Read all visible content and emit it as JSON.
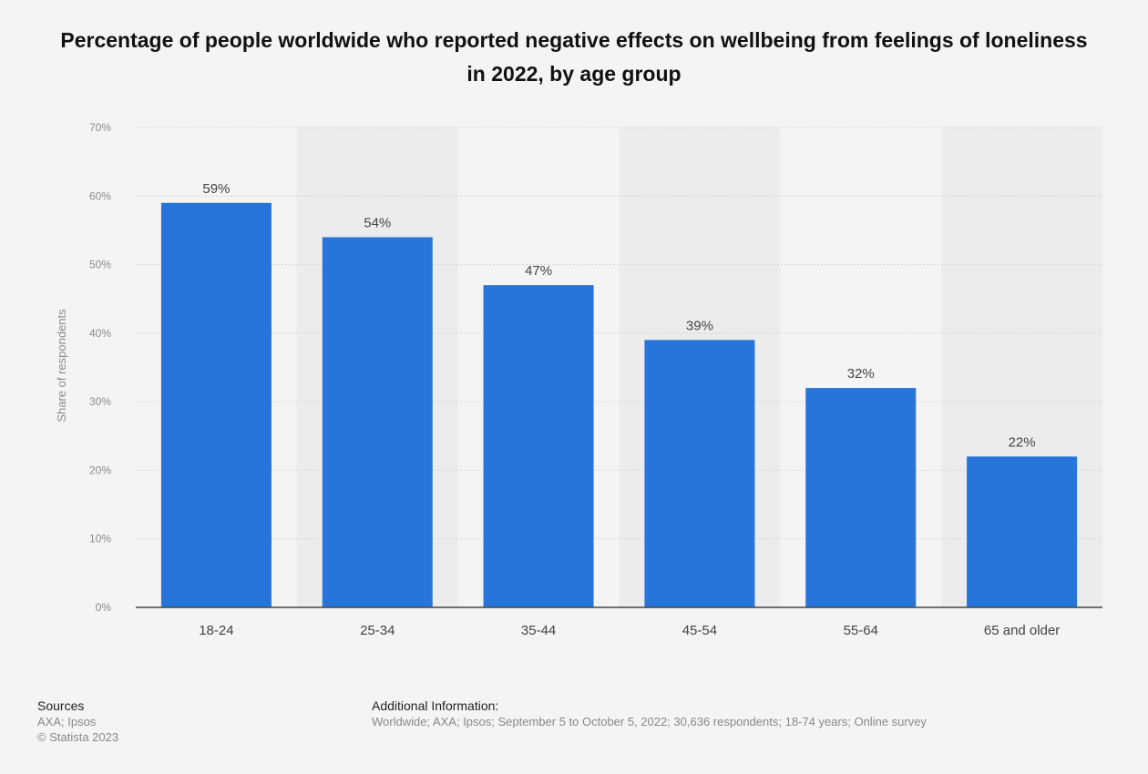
{
  "chart_data": {
    "type": "bar",
    "title": "Percentage of people worldwide who reported negative effects on wellbeing from feelings of loneliness in 2022, by age group",
    "xlabel": "",
    "ylabel": "Share of respondents",
    "categories": [
      "18-24",
      "25-34",
      "35-44",
      "45-54",
      "55-64",
      "65 and older"
    ],
    "values": [
      59,
      54,
      47,
      39,
      32,
      22
    ],
    "value_labels": [
      "59%",
      "54%",
      "47%",
      "39%",
      "32%",
      "22%"
    ],
    "ylim": [
      0,
      70
    ],
    "yticks": [
      0,
      10,
      20,
      30,
      40,
      50,
      60,
      70
    ],
    "ytick_labels": [
      "0%",
      "10%",
      "20%",
      "30%",
      "40%",
      "50%",
      "60%",
      "70%"
    ],
    "grid": true,
    "legend": "none",
    "colors": {
      "bar": "#2775db",
      "band": "#ececec",
      "grid": "#d4d4d4",
      "axis": "#444444"
    }
  },
  "footer": {
    "sources_heading": "Sources",
    "sources_lines": [
      "AXA; Ipsos",
      "© Statista 2023"
    ],
    "additional_heading": "Additional Information:",
    "additional_text": "Worldwide; AXA; Ipsos; September 5 to October 5, 2022; 30,636 respondents; 18-74 years; Online survey"
  }
}
